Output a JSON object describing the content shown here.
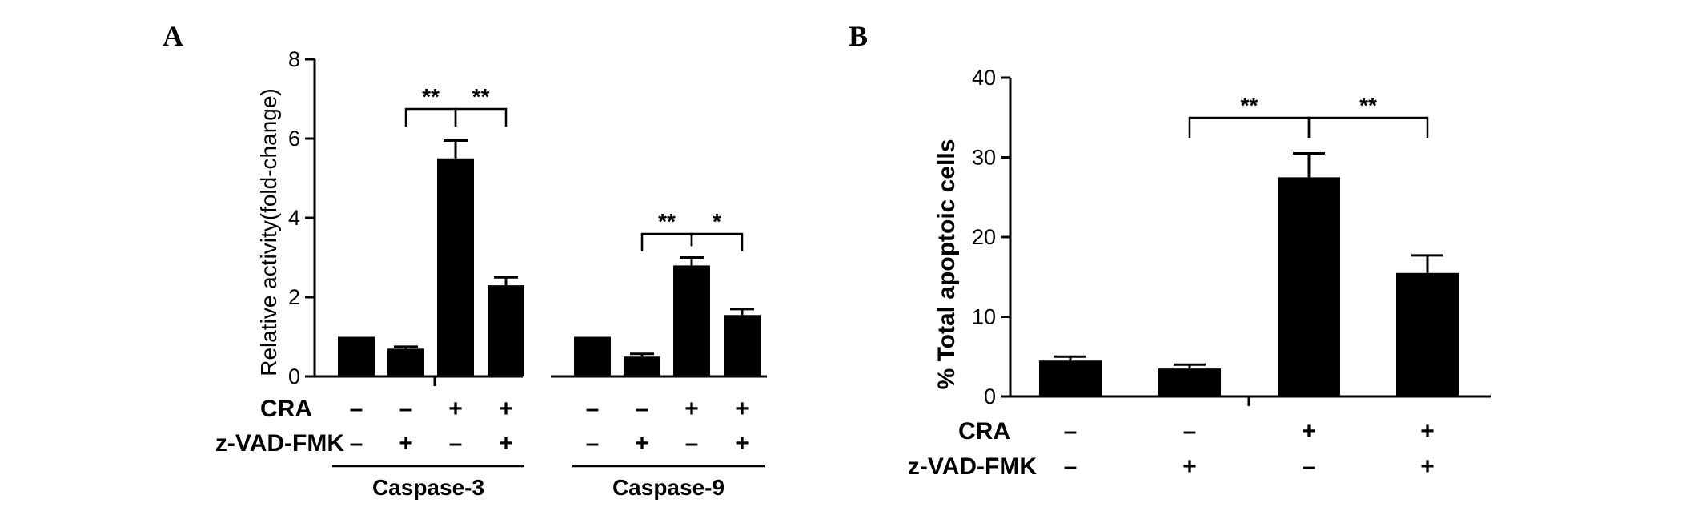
{
  "panels": [
    {
      "id": "A",
      "label": "A",
      "chart_data": {
        "type": "bar",
        "ylabel": "Relative activity(fold-change)",
        "ylim": [
          0,
          8
        ],
        "yticks": [
          0,
          2,
          4,
          6,
          8
        ],
        "row_labels": [
          "CRA",
          "z-VAD-FMK"
        ],
        "groups": [
          {
            "name": "Caspase-3",
            "bars": [
              {
                "value": 1.0,
                "error": 0.0,
                "CRA": "–",
                "zVAD": "–"
              },
              {
                "value": 0.7,
                "error": 0.05,
                "CRA": "–",
                "zVAD": "+"
              },
              {
                "value": 5.5,
                "error": 0.45,
                "CRA": "+",
                "zVAD": "–"
              },
              {
                "value": 2.3,
                "error": 0.2,
                "CRA": "+",
                "zVAD": "+"
              }
            ],
            "significance": [
              {
                "from": 1,
                "to": 2,
                "label": "**"
              },
              {
                "from": 2,
                "to": 3,
                "label": "**"
              }
            ]
          },
          {
            "name": "Caspase-9",
            "bars": [
              {
                "value": 1.0,
                "error": 0.0,
                "CRA": "–",
                "zVAD": "–"
              },
              {
                "value": 0.5,
                "error": 0.07,
                "CRA": "–",
                "zVAD": "+"
              },
              {
                "value": 2.8,
                "error": 0.2,
                "CRA": "+",
                "zVAD": "–"
              },
              {
                "value": 1.55,
                "error": 0.15,
                "CRA": "+",
                "zVAD": "+"
              }
            ],
            "significance": [
              {
                "from": 1,
                "to": 2,
                "label": "**"
              },
              {
                "from": 2,
                "to": 3,
                "label": "*"
              }
            ]
          }
        ]
      }
    },
    {
      "id": "B",
      "label": "B",
      "chart_data": {
        "type": "bar",
        "ylabel": "% Total apoptoic cells",
        "ylim": [
          0,
          40
        ],
        "yticks": [
          0,
          10,
          20,
          30,
          40
        ],
        "row_labels": [
          "CRA",
          "z-VAD-FMK"
        ],
        "groups": [
          {
            "name": "",
            "bars": [
              {
                "value": 4.5,
                "error": 0.5,
                "CRA": "–",
                "zVAD": "–"
              },
              {
                "value": 3.5,
                "error": 0.5,
                "CRA": "–",
                "zVAD": "+"
              },
              {
                "value": 27.5,
                "error": 3.0,
                "CRA": "+",
                "zVAD": "–"
              },
              {
                "value": 15.5,
                "error": 2.2,
                "CRA": "+",
                "zVAD": "+"
              }
            ],
            "significance": [
              {
                "from": 1,
                "to": 2,
                "label": "**"
              },
              {
                "from": 2,
                "to": 3,
                "label": "**"
              }
            ]
          }
        ]
      }
    }
  ]
}
